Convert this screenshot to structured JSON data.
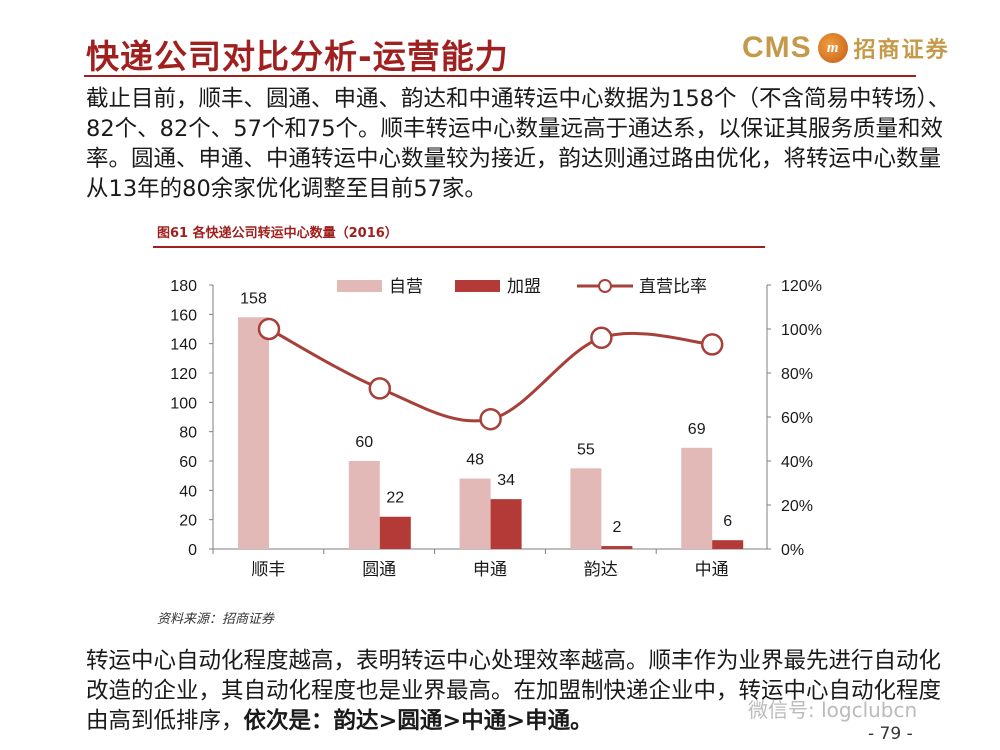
{
  "header": {
    "title": "快递公司对比分析-运营能力",
    "brand_cms": "CMS",
    "brand_logo_text": "m",
    "brand_name": "招商证券"
  },
  "intro_text": "截止目前，顺丰、圆通、申通、韵达和中通转运中心数据为158个（不含简易中转场）、82个、82个、57个和75个。顺丰转运中心数量远高于通达系，以保证其服务质量和效率。圆通、申通、中通转运中心数量较为接近，韵达则通过路由优化，将转运中心数量从13年的80余家优化调整至目前57家。",
  "figure": {
    "caption": "图61  各快递公司转运中心数量（2016）",
    "source": "资料来源：招商证券"
  },
  "chart_data": {
    "type": "bar",
    "categories": [
      "顺丰",
      "圆通",
      "申通",
      "韵达",
      "中通"
    ],
    "series": [
      {
        "name": "自营",
        "type": "bar",
        "axis": "left",
        "color": "#e3b9b7",
        "values": [
          158,
          60,
          48,
          55,
          69
        ]
      },
      {
        "name": "加盟",
        "type": "bar",
        "axis": "left",
        "color": "#b33a36",
        "values": [
          null,
          22,
          34,
          2,
          6
        ]
      },
      {
        "name": "直营比率",
        "type": "line",
        "axis": "right",
        "color": "#a8403a",
        "values": [
          100,
          73,
          59,
          96,
          93
        ]
      }
    ],
    "ylim": [
      0,
      180
    ],
    "yticks": [
      "0",
      "20",
      "40",
      "60",
      "80",
      "100",
      "120",
      "140",
      "160",
      "180"
    ],
    "y2lim": [
      0,
      120
    ],
    "y2ticks": [
      "0%",
      "20%",
      "40%",
      "60%",
      "80%",
      "100%",
      "120%"
    ],
    "legend_position": "top",
    "grid": false
  },
  "bottom_text": {
    "normal": "转运中心自动化程度越高，表明转运中心处理效率越高。顺丰作为业界最先进行自动化改造的企业，其自动化程度也是业界最高。在加盟制快递企业中，转运中心自动化程度由高到低排序，",
    "emphasis": "依次是：韵达>圆通>中通>申通。"
  },
  "watermark": "微信号: logclubcn",
  "page_number": "- 79 -"
}
